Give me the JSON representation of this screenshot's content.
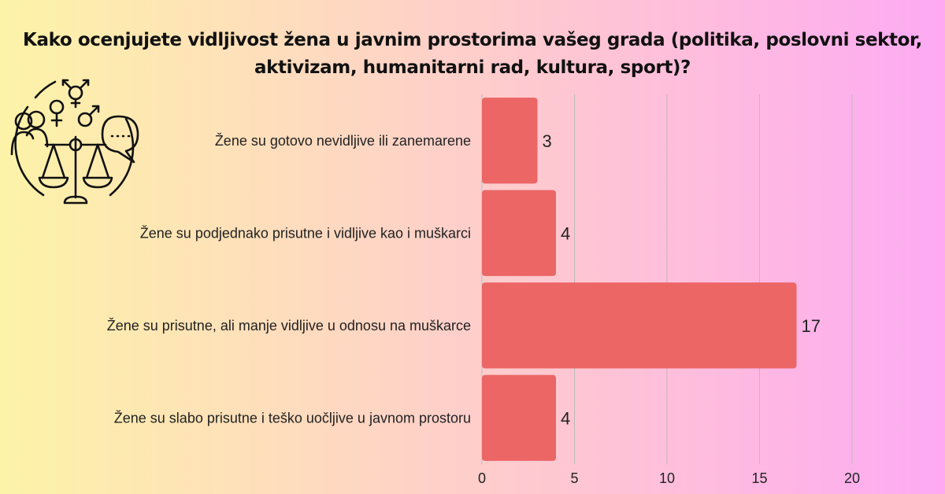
{
  "header": {
    "title_line1": "Kako ocenjujete vidljivost žena u javnim prostorima vašeg grada (politika, poslovni sektor,",
    "title_line2": "aktivizam, humanitarni rad, kultura, sport)?"
  },
  "illustration": {
    "icon": "gender-equality-icon"
  },
  "colors": {
    "bar": "#ec6666",
    "grid": "#bbbbbb"
  },
  "chart_data": {
    "type": "bar",
    "orientation": "horizontal",
    "categories": [
      "Žene su gotovo nevidljive ili zanemarene",
      "Žene su podjednako prisutne i vidljive kao i muškarci",
      "Žene su prisutne, ali manje vidljive u odnosu na muškarce",
      "Žene su slabo prisutne i teško uočljive u javnom prostoru"
    ],
    "values": [
      3,
      4,
      17,
      4
    ],
    "xlim": [
      0,
      20
    ],
    "xticks": [
      0,
      5,
      10,
      15,
      20
    ],
    "grid": true
  }
}
